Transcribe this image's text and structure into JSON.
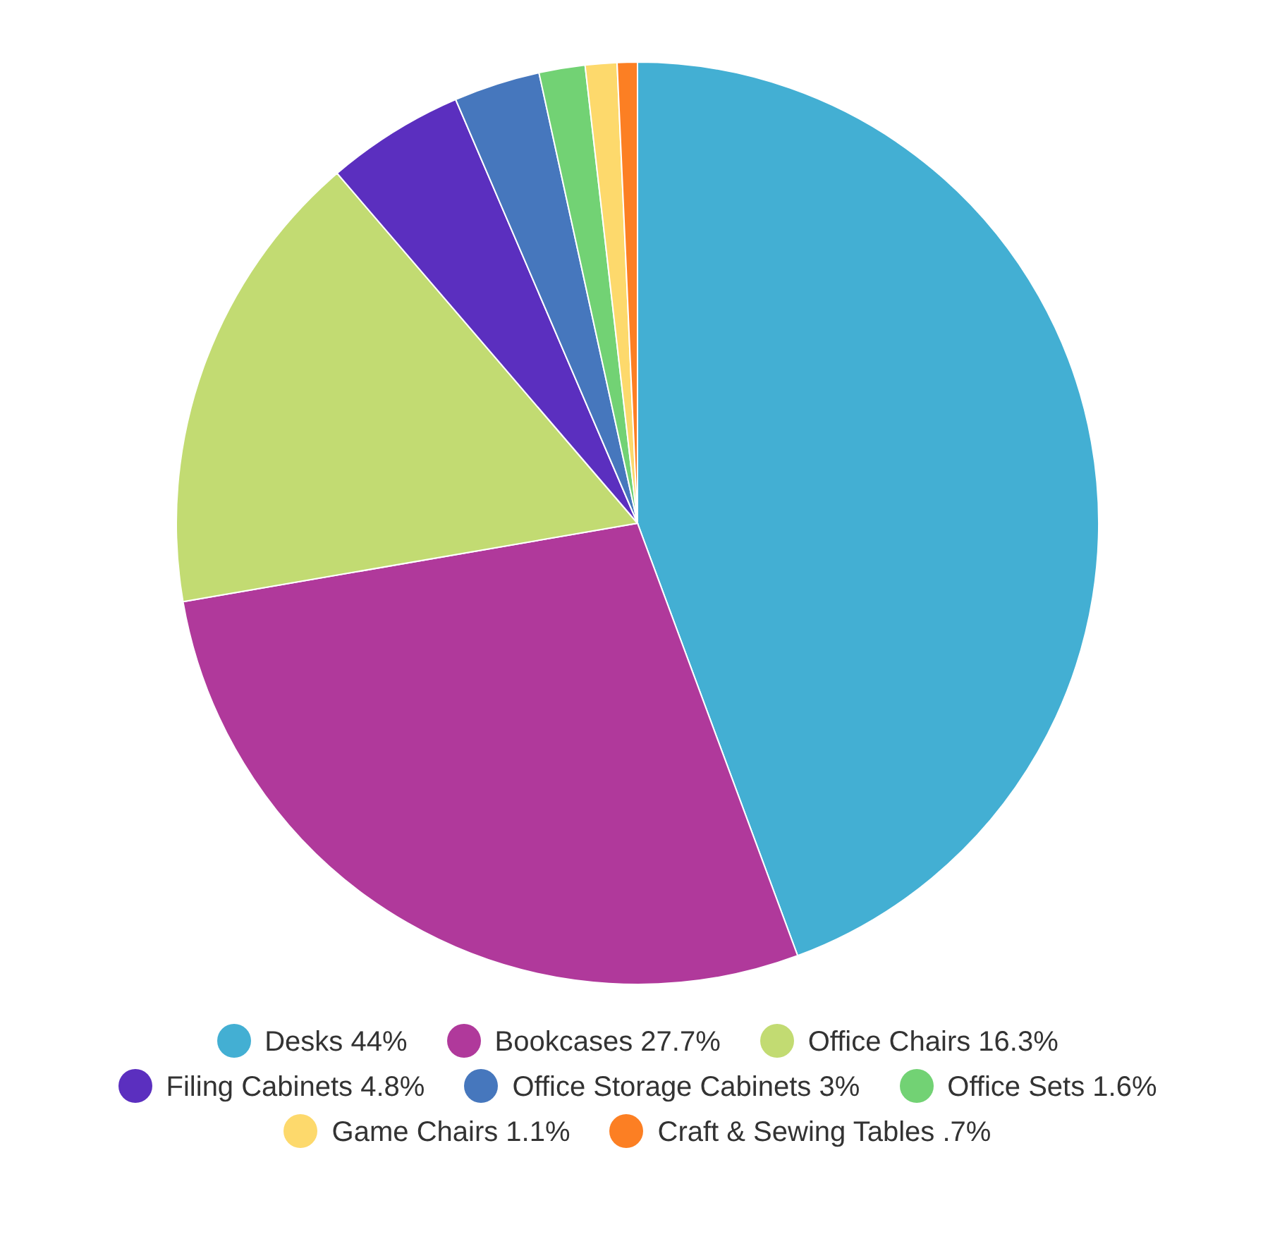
{
  "chart_data": {
    "type": "pie",
    "categories": [
      "Desks 44%",
      "Bookcases 27.7%",
      "Office Chairs 16.3%",
      "Filing Cabinets 4.8%",
      "Office Storage Cabinets 3%",
      "Office Sets 1.6%",
      "Game Chairs 1.1%",
      "Craft & Sewing Tables .7%"
    ],
    "values": [
      44,
      27.7,
      16.3,
      4.8,
      3,
      1.6,
      1.1,
      0.7
    ],
    "colors": [
      "#43afd3",
      "#b0399b",
      "#c2db72",
      "#5b2fbf",
      "#4677bd",
      "#72d274",
      "#fdd96c",
      "#fc7f23"
    ],
    "legend": "bottom"
  }
}
